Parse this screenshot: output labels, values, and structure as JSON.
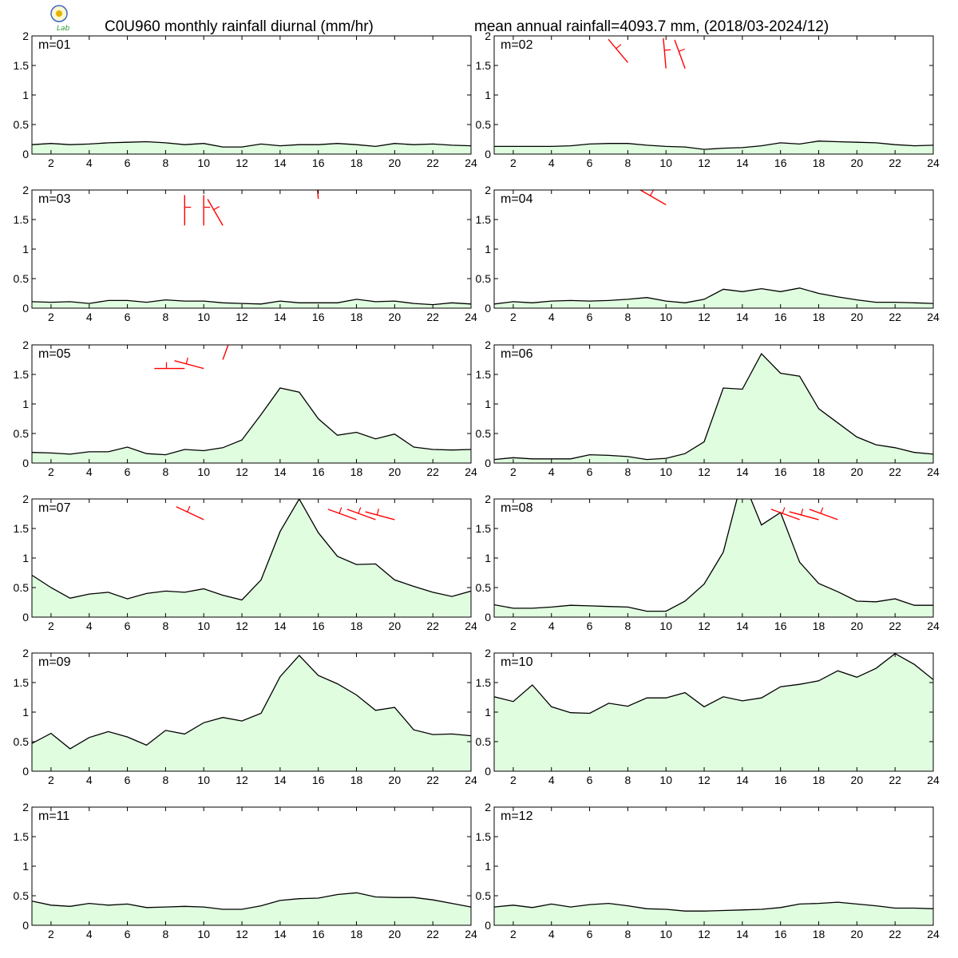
{
  "header": {
    "title_left": "C0U960 monthly rainfall diurnal (mm/hr)",
    "title_right": "mean annual rainfall=4093.7 mm, (2018/03-2024/12)",
    "logo_text": "Lab"
  },
  "colors": {
    "area_fill": "#e0fde0",
    "line": "#000000",
    "wind_barb": "#ff0000",
    "axis": "#000000"
  },
  "chart_data": {
    "type": "area",
    "x": [
      1,
      2,
      3,
      4,
      5,
      6,
      7,
      8,
      9,
      10,
      11,
      12,
      13,
      14,
      15,
      16,
      17,
      18,
      19,
      20,
      21,
      22,
      23,
      24
    ],
    "x_ticks": [
      2,
      4,
      6,
      8,
      10,
      12,
      14,
      16,
      18,
      20,
      22,
      24
    ],
    "y_ticks": [
      0,
      0.5,
      1,
      1.5,
      2
    ],
    "y_tick_labels": [
      "0",
      "0.5",
      "1",
      "1.5",
      "2"
    ],
    "xlim": [
      1,
      24
    ],
    "ylim": [
      0,
      2
    ],
    "panels": [
      {
        "label": "m=01",
        "values": [
          0.16,
          0.18,
          0.16,
          0.17,
          0.19,
          0.2,
          0.21,
          0.19,
          0.16,
          0.18,
          0.12,
          0.12,
          0.17,
          0.14,
          0.16,
          0.16,
          0.18,
          0.16,
          0.13,
          0.18,
          0.16,
          0.17,
          0.15,
          0.14
        ]
      },
      {
        "label": "m=02",
        "values": [
          0.13,
          0.13,
          0.13,
          0.13,
          0.14,
          0.17,
          0.18,
          0.18,
          0.15,
          0.13,
          0.12,
          0.08,
          0.1,
          0.11,
          0.14,
          0.19,
          0.17,
          0.22,
          0.21,
          0.2,
          0.19,
          0.16,
          0.14,
          0.15
        ]
      },
      {
        "label": "m=03",
        "values": [
          0.11,
          0.1,
          0.11,
          0.08,
          0.13,
          0.13,
          0.1,
          0.14,
          0.12,
          0.12,
          0.09,
          0.08,
          0.07,
          0.12,
          0.09,
          0.09,
          0.09,
          0.15,
          0.11,
          0.12,
          0.08,
          0.06,
          0.09,
          0.07
        ]
      },
      {
        "label": "m=04",
        "values": [
          0.07,
          0.11,
          0.09,
          0.12,
          0.13,
          0.12,
          0.13,
          0.15,
          0.18,
          0.12,
          0.09,
          0.15,
          0.32,
          0.28,
          0.33,
          0.28,
          0.34,
          0.25,
          0.19,
          0.14,
          0.1,
          0.1,
          0.09,
          0.08
        ]
      },
      {
        "label": "m=05",
        "values": [
          0.18,
          0.17,
          0.15,
          0.19,
          0.19,
          0.27,
          0.16,
          0.14,
          0.23,
          0.21,
          0.26,
          0.39,
          0.82,
          1.27,
          1.2,
          0.75,
          0.47,
          0.52,
          0.41,
          0.49,
          0.27,
          0.23,
          0.22,
          0.23
        ]
      },
      {
        "label": "m=06",
        "values": [
          0.06,
          0.09,
          0.07,
          0.07,
          0.07,
          0.14,
          0.13,
          0.11,
          0.06,
          0.08,
          0.16,
          0.36,
          1.27,
          1.25,
          1.85,
          1.52,
          1.47,
          0.92,
          0.68,
          0.44,
          0.31,
          0.26,
          0.18,
          0.15
        ]
      },
      {
        "label": "m=07",
        "values": [
          0.71,
          0.5,
          0.32,
          0.39,
          0.42,
          0.31,
          0.4,
          0.44,
          0.42,
          0.48,
          0.37,
          0.29,
          0.63,
          1.45,
          2.0,
          1.43,
          1.03,
          0.89,
          0.9,
          0.63,
          0.52,
          0.42,
          0.35,
          0.44
        ]
      },
      {
        "label": "m=08",
        "values": [
          0.21,
          0.15,
          0.15,
          0.17,
          0.2,
          0.19,
          0.18,
          0.17,
          0.1,
          0.1,
          0.27,
          0.56,
          1.1,
          2.35,
          1.56,
          1.77,
          0.93,
          0.57,
          0.43,
          0.27,
          0.26,
          0.31,
          0.2,
          0.2
        ]
      },
      {
        "label": "m=09",
        "values": [
          0.47,
          0.64,
          0.38,
          0.57,
          0.67,
          0.58,
          0.44,
          0.69,
          0.63,
          0.82,
          0.91,
          0.85,
          0.98,
          1.6,
          1.96,
          1.62,
          1.48,
          1.29,
          1.03,
          1.08,
          0.7,
          0.62,
          0.63,
          0.6
        ]
      },
      {
        "label": "m=10",
        "values": [
          1.26,
          1.18,
          1.46,
          1.09,
          0.99,
          0.98,
          1.15,
          1.1,
          1.24,
          1.24,
          1.33,
          1.09,
          1.26,
          1.19,
          1.24,
          1.43,
          1.47,
          1.53,
          1.7,
          1.59,
          1.74,
          1.99,
          1.81,
          1.55
        ]
      },
      {
        "label": "m=11",
        "values": [
          0.41,
          0.34,
          0.32,
          0.37,
          0.34,
          0.36,
          0.3,
          0.31,
          0.32,
          0.31,
          0.27,
          0.27,
          0.33,
          0.42,
          0.45,
          0.46,
          0.52,
          0.55,
          0.48,
          0.47,
          0.47,
          0.43,
          0.37,
          0.31
        ]
      },
      {
        "label": "m=12",
        "values": [
          0.31,
          0.34,
          0.3,
          0.36,
          0.31,
          0.35,
          0.37,
          0.33,
          0.28,
          0.27,
          0.24,
          0.24,
          0.25,
          0.26,
          0.27,
          0.3,
          0.36,
          0.37,
          0.39,
          0.36,
          0.33,
          0.29,
          0.29,
          0.28
        ]
      }
    ],
    "wind_barbs": [
      {
        "dirs": [
          340,
          355,
          355,
          355,
          355,
          355,
          355,
          355,
          355,
          355,
          355,
          355,
          355,
          355,
          355,
          355,
          355,
          355,
          355,
          350,
          350,
          350,
          350,
          340
        ],
        "heights": [
          2,
          2,
          2,
          2,
          2,
          2,
          2,
          2,
          2,
          2,
          2,
          2,
          2,
          2,
          2,
          2,
          2,
          2,
          2,
          2,
          2,
          2,
          2,
          2
        ]
      },
      {
        "dirs": [
          340,
          350,
          355,
          355,
          355,
          355,
          355,
          320,
          0,
          355,
          340,
          0,
          15,
          355,
          355,
          355,
          340,
          330,
          325,
          325,
          325,
          330,
          335,
          330
        ],
        "heights": [
          2,
          2,
          2,
          2,
          2,
          2,
          2,
          1.55,
          2,
          1.45,
          1.45,
          2,
          2,
          2,
          2,
          2,
          2,
          2,
          2,
          2,
          2,
          2,
          2,
          2
        ]
      },
      {
        "dirs": [
          350,
          355,
          355,
          355,
          355,
          355,
          355,
          355,
          0,
          0,
          330,
          0,
          355,
          355,
          355,
          355,
          300,
          350,
          345,
          340,
          340,
          345,
          350,
          350
        ],
        "heights": [
          2,
          2,
          2,
          2,
          2,
          2,
          2,
          2,
          1.4,
          1.4,
          1.4,
          2,
          2,
          2,
          2,
          1.85,
          2,
          2,
          2,
          2,
          2,
          2,
          2,
          2
        ]
      },
      {
        "dirs": [
          345,
          355,
          355,
          355,
          355,
          355,
          355,
          355,
          355,
          300,
          320,
          355,
          355,
          355,
          355,
          355,
          355,
          345,
          340,
          340,
          340,
          340,
          345,
          345
        ],
        "heights": [
          2,
          2,
          2,
          2,
          2,
          2,
          2,
          2,
          2,
          1.75,
          2,
          2,
          2,
          2,
          2,
          2,
          2,
          2,
          2,
          2,
          2,
          2,
          2,
          2
        ]
      },
      {
        "dirs": [
          350,
          355,
          355,
          355,
          355,
          355,
          355,
          10,
          270,
          285,
          20,
          15,
          10,
          5,
          0,
          355,
          345,
          335,
          330,
          330,
          335,
          340,
          345,
          345
        ],
        "heights": [
          2,
          2,
          2,
          2,
          2,
          2,
          2,
          2,
          1.6,
          1.6,
          1.75,
          2,
          2,
          2,
          2,
          2,
          2,
          2,
          2,
          2,
          2,
          2,
          2,
          2
        ]
      },
      {
        "dirs": [
          345,
          355,
          355,
          355,
          355,
          355,
          355,
          355,
          355,
          30,
          40,
          20,
          10,
          5,
          0,
          355,
          345,
          335,
          330,
          330,
          335,
          340,
          345,
          345
        ],
        "heights": [
          2,
          2,
          2,
          2,
          2,
          2,
          2,
          2,
          2,
          2,
          2,
          2,
          2,
          2,
          2,
          2,
          2,
          2,
          2,
          2,
          2,
          2,
          2,
          2
        ]
      },
      {
        "dirs": [
          345,
          355,
          355,
          355,
          355,
          10,
          355,
          355,
          355,
          295,
          15,
          30,
          15,
          5,
          0,
          355,
          300,
          290,
          290,
          285,
          300,
          320,
          340,
          345
        ],
        "heights": [
          2,
          2,
          2,
          2,
          2,
          2,
          2,
          2,
          2,
          1.65,
          2,
          2,
          2,
          2,
          2,
          2,
          2,
          1.65,
          1.65,
          1.65,
          2,
          2,
          2,
          2
        ]
      },
      {
        "dirs": [
          345,
          355,
          355,
          355,
          355,
          355,
          355,
          355,
          355,
          355,
          355,
          355,
          355,
          355,
          355,
          300,
          290,
          285,
          290,
          300,
          320,
          330,
          340,
          345
        ],
        "heights": [
          2,
          2,
          2,
          2,
          2,
          2,
          2,
          2,
          2,
          2,
          2,
          2,
          2,
          2,
          2,
          2,
          1.65,
          1.65,
          1.65,
          2,
          2,
          2,
          2,
          2
        ]
      },
      {
        "dirs": [
          335,
          355,
          355,
          355,
          355,
          355,
          355,
          355,
          355,
          355,
          355,
          355,
          355,
          355,
          355,
          355,
          355,
          355,
          355,
          355,
          345,
          345,
          350,
          340
        ],
        "heights": [
          2,
          2,
          2,
          2,
          2,
          2,
          2,
          2,
          2,
          2,
          2,
          2,
          2,
          2,
          2,
          2,
          2,
          2,
          2,
          2,
          2,
          2,
          2,
          2
        ]
      },
      {
        "dirs": [
          345,
          355,
          355,
          355,
          355,
          355,
          355,
          355,
          355,
          355,
          355,
          355,
          355,
          355,
          355,
          355,
          355,
          355,
          355,
          355,
          355,
          355,
          345,
          340
        ],
        "heights": [
          2,
          2,
          2,
          2,
          2,
          2,
          2,
          2,
          2,
          2,
          2,
          2,
          2,
          2,
          2,
          2,
          2,
          2,
          2,
          2,
          2,
          2,
          2,
          2
        ]
      },
      {
        "dirs": [
          340,
          355,
          355,
          355,
          355,
          355,
          355,
          355,
          355,
          355,
          355,
          355,
          355,
          355,
          355,
          355,
          355,
          355,
          355,
          355,
          350,
          345,
          335,
          330
        ],
        "heights": [
          2,
          2,
          2,
          2,
          2,
          2,
          2,
          2,
          2,
          2,
          2,
          2,
          2,
          2,
          2,
          2,
          2,
          2,
          2,
          2,
          2,
          2,
          2,
          2
        ]
      },
      {
        "dirs": [
          340,
          15,
          20,
          20,
          15,
          10,
          355,
          355,
          355,
          355,
          355,
          355,
          355,
          355,
          355,
          355,
          355,
          355,
          355,
          355,
          355,
          355,
          355,
          350
        ],
        "heights": [
          2,
          2,
          2,
          2,
          2,
          2,
          2,
          2,
          2,
          2,
          2,
          2,
          2,
          2,
          2,
          2,
          2,
          2,
          2,
          2,
          2,
          2,
          2,
          2
        ]
      }
    ]
  }
}
